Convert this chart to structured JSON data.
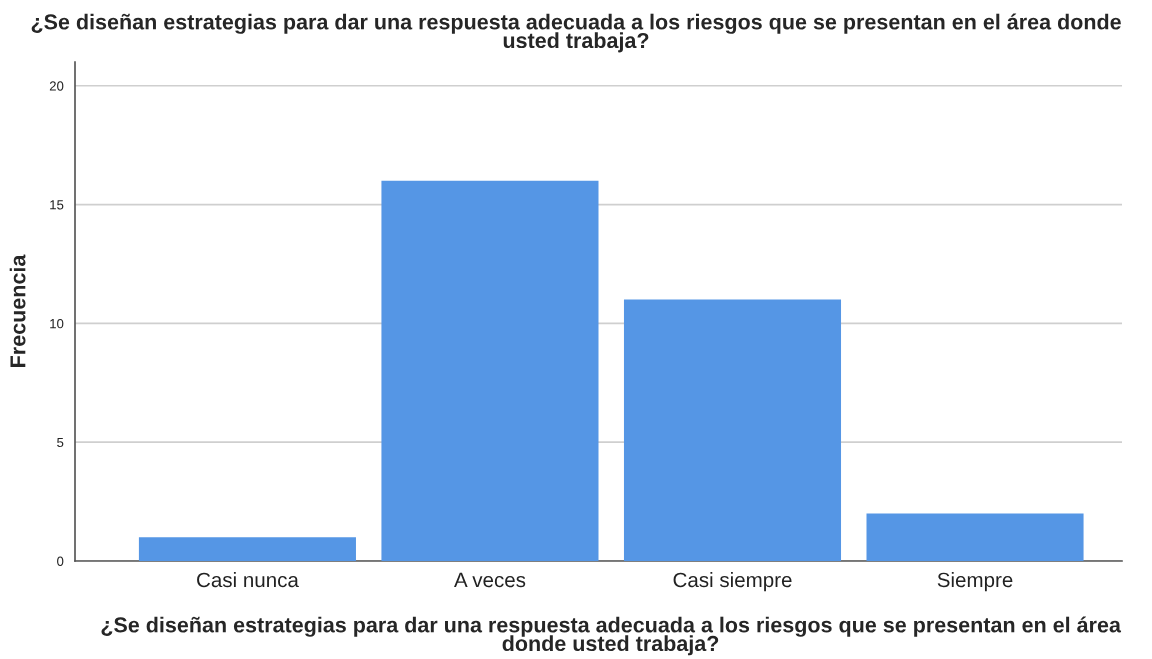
{
  "chart_data": {
    "type": "bar",
    "title": "¿Se diseñan estrategias para dar una respuesta adecuada a los riesgos que se presentan en el área donde usted trabaja?",
    "xlabel": "¿Se diseñan estrategias para dar una respuesta adecuada a los riesgos que se presentan en el área donde usted trabaja?",
    "ylabel": "Frecuencia",
    "categories": [
      "Casi nunca",
      "A veces",
      "Casi siempre",
      "Siempre"
    ],
    "values": [
      1,
      16,
      11,
      2
    ],
    "color": "#5596e5",
    "ylim": [
      0,
      21
    ],
    "yticks": [
      0,
      5,
      10,
      15,
      20
    ],
    "grid": "y"
  }
}
